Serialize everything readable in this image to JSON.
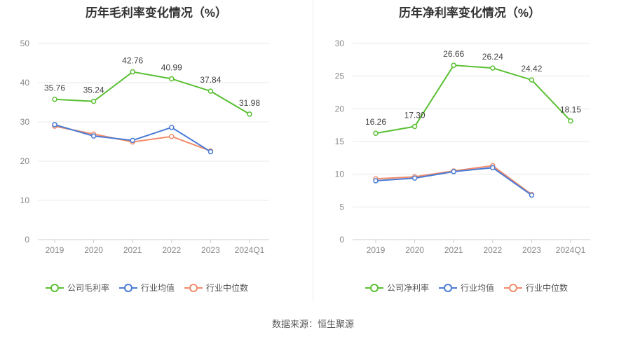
{
  "source_label": "数据来源：恒生聚源",
  "chart_data": [
    {
      "type": "line",
      "title": "历年毛利率变化情况（%）",
      "categories": [
        "2019",
        "2020",
        "2021",
        "2022",
        "2023",
        "2024Q1"
      ],
      "ylim": [
        0,
        50
      ],
      "yticks": [
        0,
        10,
        20,
        30,
        40,
        50
      ],
      "grid": true,
      "legend_position": "bottom",
      "series": [
        {
          "name": "公司毛利率",
          "color": "#5ac033",
          "labels": true,
          "values": [
            35.76,
            35.24,
            42.76,
            40.99,
            37.84,
            31.98
          ]
        },
        {
          "name": "行业均值",
          "color": "#4a7bd4",
          "labels": false,
          "values": [
            29.3,
            26.4,
            25.3,
            28.6,
            22.4,
            null
          ]
        },
        {
          "name": "行业中位数",
          "color": "#f08c6c",
          "labels": false,
          "values": [
            28.9,
            26.9,
            24.9,
            26.3,
            22.6,
            null
          ]
        }
      ]
    },
    {
      "type": "line",
      "title": "历年净利率变化情况（%）",
      "categories": [
        "2019",
        "2020",
        "2021",
        "2022",
        "2023",
        "2024Q1"
      ],
      "ylim": [
        0,
        30
      ],
      "yticks": [
        0,
        5,
        10,
        15,
        20,
        25,
        30
      ],
      "grid": true,
      "legend_position": "bottom",
      "series": [
        {
          "name": "公司净利率",
          "color": "#5ac033",
          "labels": true,
          "values": [
            16.26,
            17.3,
            26.66,
            26.24,
            24.42,
            18.15
          ]
        },
        {
          "name": "行业均值",
          "color": "#4a7bd4",
          "labels": false,
          "values": [
            9.0,
            9.4,
            10.4,
            11.0,
            6.8,
            null
          ]
        },
        {
          "name": "行业中位数",
          "color": "#f08c6c",
          "labels": false,
          "values": [
            9.3,
            9.6,
            10.5,
            11.3,
            6.9,
            null
          ]
        }
      ]
    }
  ]
}
